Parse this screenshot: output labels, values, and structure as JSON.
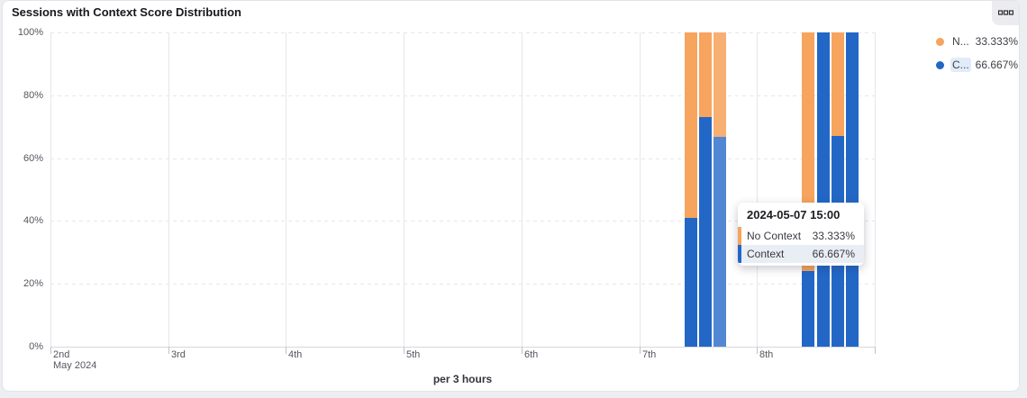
{
  "header": {
    "title": "Sessions with Context Score Distribution",
    "menu_icon": "data-grid-icon"
  },
  "legend": {
    "items": [
      {
        "series": "No Context",
        "label": "N...",
        "value": "33.333%",
        "color": "#f6a45e",
        "highlighted": false
      },
      {
        "series": "Context",
        "label": "C...",
        "value": "66.667%",
        "color": "#2267c6",
        "highlighted": true
      }
    ]
  },
  "tooltip": {
    "title": "2024-05-07 15:00",
    "rows": [
      {
        "label": "No Context",
        "value": "33.333%",
        "color": "#f6a45e",
        "highlighted": false
      },
      {
        "label": "Context",
        "value": "66.667%",
        "color": "#2267c6",
        "highlighted": true
      }
    ]
  },
  "chart_data": {
    "type": "bar",
    "stacked": true,
    "title": "Sessions with Context Score Distribution",
    "xlabel": "per 3 hours",
    "x_axis": {
      "day_labels": [
        "2nd",
        "3rd",
        "4th",
        "5th",
        "6th",
        "7th",
        "8th"
      ],
      "month_label": "May 2024",
      "slots_per_day": 8,
      "slot_hours": 3
    },
    "y_axis": {
      "tick_labels": [
        "0%",
        "20%",
        "40%",
        "60%",
        "80%",
        "100%"
      ],
      "min": 0,
      "max": 100,
      "grid": "dashed-horizontal, solid-vertical"
    },
    "series": [
      {
        "name": "No Context",
        "color": "#f6a45e",
        "legend_value": "33.333%"
      },
      {
        "name": "Context",
        "color": "#2267c6",
        "legend_value": "66.667%"
      }
    ],
    "colors": {
      "context": "#2267c6",
      "context_highlight": "#5287d4",
      "no_context": "#f6a45e",
      "no_context_highlight": "#f8af72"
    },
    "bars": [
      {
        "time": "2024-05-07 09:00",
        "day_index": 5,
        "slot": 3,
        "context_pct": 41,
        "no_context_pct": 59,
        "highlighted": false
      },
      {
        "time": "2024-05-07 12:00",
        "day_index": 5,
        "slot": 4,
        "context_pct": 73,
        "no_context_pct": 27,
        "highlighted": false
      },
      {
        "time": "2024-05-07 15:00",
        "day_index": 5,
        "slot": 5,
        "context_pct": 66.667,
        "no_context_pct": 33.333,
        "highlighted": true
      },
      {
        "time": "2024-05-08 09:00",
        "day_index": 6,
        "slot": 3,
        "context_pct": 24,
        "no_context_pct": 76,
        "highlighted": false
      },
      {
        "time": "2024-05-08 12:00",
        "day_index": 6,
        "slot": 4,
        "context_pct": 100,
        "no_context_pct": 0,
        "highlighted": false
      },
      {
        "time": "2024-05-08 15:00",
        "day_index": 6,
        "slot": 5,
        "context_pct": 67,
        "no_context_pct": 33,
        "highlighted": false
      },
      {
        "time": "2024-05-08 18:00",
        "day_index": 6,
        "slot": 6,
        "context_pct": 100,
        "no_context_pct": 0,
        "highlighted": false
      }
    ]
  }
}
